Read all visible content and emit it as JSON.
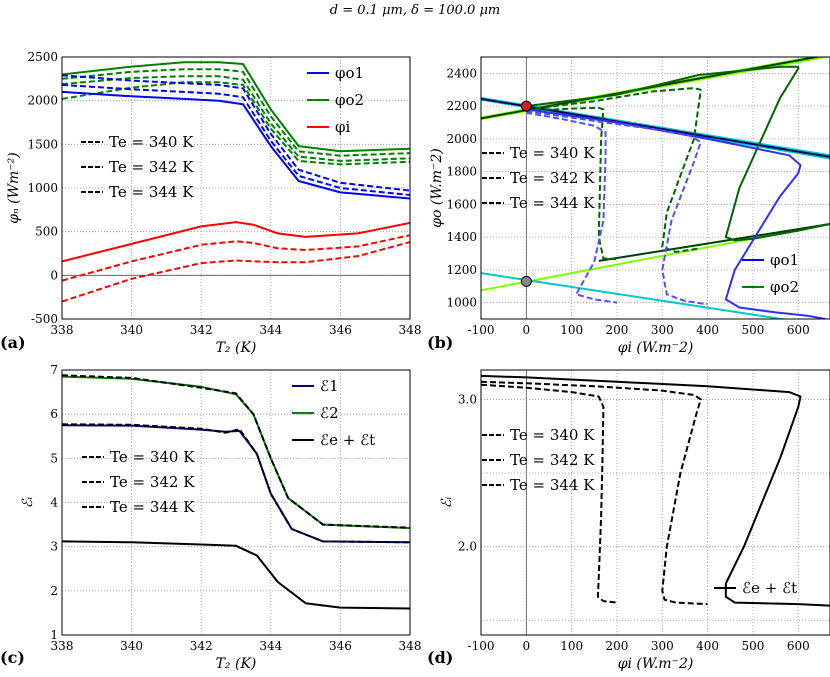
{
  "title": "d = 0.1 μm, δ = 100.0 μm",
  "chart_data": [
    {
      "id": "a",
      "panel_label": "(a)",
      "type": "line",
      "xlabel": "T₂ (K)",
      "ylabel": "φₙ (Wm⁻²)",
      "xlim": [
        338,
        348
      ],
      "ylim": [
        -500,
        2500
      ],
      "xticks": [
        338,
        340,
        342,
        344,
        346,
        348
      ],
      "yticks": [
        -500,
        0,
        500,
        1000,
        1500,
        2000,
        2500
      ],
      "legend_series": [
        "φo1",
        "φo2",
        "φi"
      ],
      "legend_te": [
        "Te = 340 K",
        "Te = 342 K",
        "Te = 344 K"
      ],
      "series": [
        {
          "name": "φo2 340",
          "color": "#008000",
          "dash": false,
          "x": [
            338,
            340,
            341.5,
            342.5,
            343.2,
            344,
            344.8,
            346,
            348
          ],
          "y": [
            2300,
            2390,
            2440,
            2440,
            2420,
            1900,
            1480,
            1420,
            1450
          ]
        },
        {
          "name": "φo2 342",
          "color": "#008000",
          "dash": true,
          "x": [
            338,
            340,
            341.5,
            342.5,
            343.2,
            344,
            344.8,
            346,
            348
          ],
          "y": [
            2250,
            2330,
            2360,
            2360,
            2330,
            1820,
            1420,
            1370,
            1400
          ]
        },
        {
          "name": "φo2 344",
          "color": "#008000",
          "dash": true,
          "x": [
            338,
            340,
            341.5,
            342.5,
            343.2,
            344,
            344.8,
            346,
            348
          ],
          "y": [
            2190,
            2260,
            2280,
            2280,
            2240,
            1740,
            1360,
            1310,
            1340
          ]
        },
        {
          "name": "φo2 x",
          "color": "#008000",
          "dash": true,
          "x": [
            338,
            340,
            341.5,
            342.5,
            343.2,
            344,
            344.8,
            346,
            348
          ],
          "y": [
            2020,
            2150,
            2210,
            2210,
            2180,
            1680,
            1310,
            1270,
            1300
          ]
        },
        {
          "name": "φo1 340",
          "color": "#0000ff",
          "dash": false,
          "x": [
            338,
            340,
            341.5,
            342.5,
            343.2,
            344,
            344.8,
            346,
            348
          ],
          "y": [
            2100,
            2050,
            2020,
            2000,
            1960,
            1480,
            1080,
            950,
            880
          ]
        },
        {
          "name": "φo1 342",
          "color": "#0000ff",
          "dash": true,
          "x": [
            338,
            340,
            341.5,
            342.5,
            343.2,
            344,
            344.8,
            346,
            348
          ],
          "y": [
            2180,
            2130,
            2100,
            2080,
            2040,
            1540,
            1140,
            1000,
            920
          ]
        },
        {
          "name": "φo1 344",
          "color": "#0000ff",
          "dash": true,
          "x": [
            338,
            340,
            341.5,
            342.5,
            343.2,
            344,
            344.8,
            346,
            348
          ],
          "y": [
            2290,
            2230,
            2200,
            2180,
            2140,
            1620,
            1210,
            1060,
            970
          ]
        },
        {
          "name": "φi 340",
          "color": "#ff0000",
          "dash": false,
          "x": [
            338,
            340,
            342,
            343,
            343.5,
            344.2,
            345,
            346.5,
            348
          ],
          "y": [
            160,
            360,
            560,
            610,
            580,
            480,
            440,
            480,
            600
          ]
        },
        {
          "name": "φi 342",
          "color": "#ff0000",
          "dash": true,
          "x": [
            338,
            340,
            342,
            343,
            343.5,
            344.2,
            345,
            346.5,
            348
          ],
          "y": [
            -60,
            160,
            350,
            390,
            370,
            310,
            290,
            330,
            460
          ]
        },
        {
          "name": "φi 344",
          "color": "#ff0000",
          "dash": true,
          "x": [
            338,
            340,
            342,
            343,
            343.5,
            344.2,
            345,
            346.5,
            348
          ],
          "y": [
            -300,
            -40,
            140,
            170,
            160,
            150,
            150,
            220,
            380
          ]
        }
      ]
    },
    {
      "id": "b",
      "panel_label": "(b)",
      "type": "line",
      "xlabel": "φi (W.m⁻2)",
      "ylabel": "φo (W.m⁻2)",
      "xlim": [
        -100,
        670
      ],
      "ylim": [
        900,
        2500
      ],
      "xticks": [
        -100,
        0,
        100,
        200,
        300,
        400,
        500,
        600
      ],
      "yticks": [
        1000,
        1200,
        1400,
        1600,
        1800,
        2000,
        2200,
        2400
      ],
      "legend_series": [
        "φo1",
        "φo2"
      ],
      "legend_te": [
        "Te = 340 K",
        "Te = 342 K",
        "Te = 344 K"
      ],
      "series": [
        {
          "name": "lime line 1",
          "color": "#80ff00",
          "dash": false,
          "x": [
            -100,
            670
          ],
          "y": [
            2130,
            2520
          ]
        },
        {
          "name": "lime line 2",
          "color": "#80ff00",
          "dash": false,
          "x": [
            -100,
            670
          ],
          "y": [
            2120,
            2505
          ]
        },
        {
          "name": "lime line 3",
          "color": "#80ff00",
          "dash": false,
          "x": [
            -100,
            670
          ],
          "y": [
            1075,
            1480
          ]
        },
        {
          "name": "cyan line 1",
          "color": "#00c8c8",
          "dash": false,
          "x": [
            -100,
            670
          ],
          "y": [
            2240,
            1880
          ]
        },
        {
          "name": "cyan line 2",
          "color": "#00c8c8",
          "dash": false,
          "x": [
            -100,
            670
          ],
          "y": [
            2250,
            1900
          ]
        },
        {
          "name": "cyan line 3",
          "color": "#00c8c8",
          "dash": false,
          "x": [
            -100,
            670
          ],
          "y": [
            1180,
            855
          ]
        },
        {
          "name": "dark green dup",
          "color": "#004000",
          "dash": false,
          "x": [
            -100,
            670
          ],
          "y": [
            2125,
            2515
          ]
        },
        {
          "name": "dark blue dup",
          "color": "#000060",
          "dash": false,
          "x": [
            -100,
            670
          ],
          "y": [
            2245,
            1890
          ]
        },
        {
          "name": "dark green lower",
          "color": "#004000",
          "dash": false,
          "x": [
            160,
            670
          ],
          "y": [
            1255,
            1480
          ]
        },
        {
          "name": "φo2 340",
          "color": "#006400",
          "dash": false,
          "x": [
            0,
            200,
            380,
            560,
            600,
            600,
            560,
            470,
            440,
            460,
            500,
            600,
            670
          ],
          "y": [
            2200,
            2270,
            2390,
            2440,
            2440,
            2430,
            2250,
            1700,
            1400,
            1380,
            1390,
            1440,
            1480
          ]
        },
        {
          "name": "φo2 342",
          "color": "#006400",
          "dash": true,
          "x": [
            0,
            150,
            280,
            370,
            385,
            370,
            310,
            300,
            330,
            380
          ],
          "y": [
            2180,
            2230,
            2290,
            2310,
            2300,
            2000,
            1550,
            1340,
            1310,
            1330
          ]
        },
        {
          "name": "φo2 344",
          "color": "#006400",
          "dash": true,
          "x": [
            0,
            100,
            160,
            170,
            165,
            160,
            170,
            200
          ],
          "y": [
            2170,
            2185,
            2190,
            2180,
            2000,
            1400,
            1270,
            1265
          ]
        },
        {
          "name": "φo1 340",
          "color": "#3030ff",
          "dash": false,
          "x": [
            0,
            200,
            400,
            580,
            605,
            600,
            560,
            460,
            440,
            470,
            550,
            620,
            660
          ],
          "y": [
            2180,
            2100,
            2000,
            1900,
            1840,
            1790,
            1650,
            1200,
            1020,
            970,
            940,
            920,
            900
          ]
        },
        {
          "name": "φo1 342",
          "color": "#5050ff",
          "dash": true,
          "x": [
            0,
            150,
            280,
            360,
            385,
            370,
            320,
            300,
            310,
            350,
            400
          ],
          "y": [
            2170,
            2110,
            2060,
            2020,
            1980,
            1860,
            1500,
            1200,
            1050,
            1010,
            990
          ]
        },
        {
          "name": "φo1 344",
          "color": "#5050ff",
          "dash": true,
          "x": [
            0,
            80,
            150,
            175,
            175,
            170,
            150,
            130,
            110,
            150,
            200
          ],
          "y": [
            2160,
            2120,
            2080,
            2040,
            1900,
            1500,
            1250,
            1150,
            1050,
            1020,
            1000
          ]
        }
      ],
      "markers": [
        {
          "name": "red-intersection",
          "x": 0,
          "y": 2200,
          "color": "#cc2222"
        },
        {
          "name": "gray-intersection",
          "x": 0,
          "y": 1130,
          "color": "#888888"
        }
      ]
    },
    {
      "id": "c",
      "panel_label": "(c)",
      "type": "line",
      "xlabel": "T₂ (K)",
      "ylabel": "ℰᵢ",
      "xlim": [
        338,
        348
      ],
      "ylim": [
        1,
        7
      ],
      "xticks": [
        338,
        340,
        342,
        344,
        346,
        348
      ],
      "yticks": [
        1,
        2,
        3,
        4,
        5,
        6,
        7
      ],
      "legend_series": [
        "ℰ1",
        "ℰ2",
        "ℰe + ℰt"
      ],
      "legend_te": [
        "Te = 340 K",
        "Te = 342 K",
        "Te = 344 K"
      ],
      "series": [
        {
          "name": "E2",
          "color": "#008000",
          "dash": false,
          "x": [
            338,
            340,
            342,
            343,
            343.5,
            344,
            344.5,
            345.5,
            348
          ],
          "y": [
            6.85,
            6.8,
            6.62,
            6.45,
            6.0,
            5.0,
            4.1,
            3.5,
            3.42
          ]
        },
        {
          "name": "E2 dash",
          "color": "#000000",
          "dash": true,
          "x": [
            338,
            340,
            342,
            343,
            343.5,
            344,
            344.5,
            345.5,
            348
          ],
          "y": [
            6.88,
            6.82,
            6.6,
            6.47,
            6.0,
            5.0,
            4.1,
            3.5,
            3.43
          ]
        },
        {
          "name": "E1",
          "color": "#000080",
          "dash": false,
          "x": [
            338,
            340,
            342,
            342.7,
            343.1,
            343.6,
            344,
            344.6,
            345.5,
            348
          ],
          "y": [
            5.75,
            5.74,
            5.65,
            5.6,
            5.62,
            5.1,
            4.2,
            3.4,
            3.12,
            3.1
          ]
        },
        {
          "name": "E1 dash",
          "color": "#000000",
          "dash": true,
          "x": [
            338,
            340,
            342,
            342.7,
            343.1,
            343.6,
            344,
            344.6,
            345.5,
            348
          ],
          "y": [
            5.77,
            5.76,
            5.67,
            5.58,
            5.66,
            5.1,
            4.2,
            3.4,
            3.12,
            3.1
          ]
        },
        {
          "name": "Ee+Et",
          "color": "#000000",
          "dash": false,
          "x": [
            338,
            340,
            342,
            343,
            343.6,
            344.2,
            345,
            346,
            348
          ],
          "y": [
            3.12,
            3.1,
            3.05,
            3.02,
            2.8,
            2.2,
            1.72,
            1.62,
            1.6
          ]
        }
      ]
    },
    {
      "id": "d",
      "panel_label": "(d)",
      "type": "line",
      "xlabel": "φi (W.m⁻2)",
      "ylabel": "ℰᵢ",
      "xlim": [
        -100,
        670
      ],
      "ylim": [
        1.4,
        3.2
      ],
      "xticks": [
        -100,
        0,
        100,
        200,
        300,
        400,
        500,
        600
      ],
      "yticks": [
        "",
        "2.0",
        "",
        "3.0"
      ],
      "ytick_values": [
        1.5,
        2.0,
        2.5,
        3.0
      ],
      "legend_series": [
        "ℰe + ℰt"
      ],
      "legend_te": [
        "Te = 340 K",
        "Te = 342 K",
        "Te = 344 K"
      ],
      "series": [
        {
          "name": "340",
          "color": "#000000",
          "dash": false,
          "x": [
            -100,
            0,
            200,
            400,
            580,
            605,
            600,
            560,
            480,
            440,
            440,
            460,
            600,
            670
          ],
          "y": [
            3.16,
            3.15,
            3.12,
            3.09,
            3.05,
            3.02,
            2.95,
            2.6,
            2.0,
            1.75,
            1.66,
            1.62,
            1.61,
            1.6
          ]
        },
        {
          "name": "342",
          "color": "#000000",
          "dash": true,
          "x": [
            -100,
            0,
            150,
            300,
            370,
            385,
            375,
            340,
            310,
            300,
            305,
            330,
            400
          ],
          "y": [
            3.12,
            3.11,
            3.09,
            3.06,
            3.03,
            3.0,
            2.9,
            2.5,
            2.0,
            1.7,
            1.64,
            1.62,
            1.61
          ]
        },
        {
          "name": "344",
          "color": "#000000",
          "dash": true,
          "x": [
            -100,
            0,
            100,
            160,
            170,
            168,
            165,
            160,
            158,
            170,
            200
          ],
          "y": [
            3.1,
            3.08,
            3.05,
            3.02,
            2.95,
            2.6,
            2.2,
            1.8,
            1.66,
            1.63,
            1.62
          ]
        }
      ]
    }
  ]
}
